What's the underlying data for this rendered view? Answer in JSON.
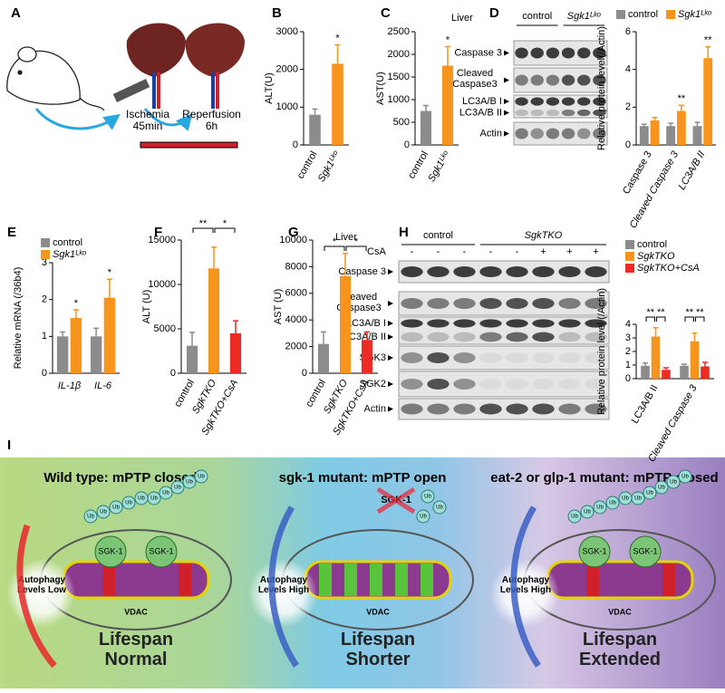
{
  "panels": [
    "A",
    "B",
    "C",
    "D",
    "E",
    "F",
    "G",
    "H",
    "I"
  ],
  "procedure": {
    "steps": [
      "Ischemia 45min",
      "Reperfusion 6h"
    ]
  },
  "blots": [
    {
      "tissue": "Liver",
      "groups": [
        "control",
        "Sgk1ᴸᵏᵒ"
      ],
      "rows": [
        "Caspase 3",
        "Cleaved Caspase3",
        "LC3A/B I",
        "LC3A/B II",
        "Actin"
      ]
    },
    {
      "tissue": "Liver",
      "groups": [
        "control",
        "SgkTKO"
      ],
      "treatment": "CsA",
      "treatment_marks": [
        "-",
        "-",
        "-",
        "-",
        "-",
        "+",
        "+",
        "+"
      ],
      "rows": [
        "Caspase 3",
        "Cleaved Caspase3",
        "LC3A/B I",
        "LC3A/B II",
        "SGK3",
        "SGK2",
        "Actin"
      ]
    }
  ],
  "chart_data": [
    {
      "type": "bar",
      "ylabel": "ALT(U)",
      "categories": [
        "control",
        "Sgk1ᴸᵏᵒ"
      ],
      "values": [
        800,
        2150
      ],
      "errors": [
        150,
        500
      ],
      "colors": [
        "#8c8c8c",
        "#f7941d"
      ],
      "ylim": [
        0,
        3000
      ],
      "yticks": [
        0,
        1000,
        2000,
        3000
      ],
      "annotations": [
        "*"
      ]
    },
    {
      "type": "bar",
      "ylabel": "AST(U)",
      "categories": [
        "control",
        "Sgk1ᴸᵏᵒ"
      ],
      "values": [
        750,
        1750
      ],
      "errors": [
        120,
        420
      ],
      "colors": [
        "#8c8c8c",
        "#f7941d"
      ],
      "ylim": [
        0,
        2500
      ],
      "yticks": [
        0,
        500,
        1000,
        1500,
        2000,
        2500
      ],
      "annotations": [
        "*"
      ]
    },
    {
      "type": "bar",
      "ylabel": "Relative protein level(/Actin)",
      "categories": [
        "Caspase 3",
        "Cleaved Caspase 3",
        "LC3A/B II"
      ],
      "series": [
        {
          "name": "control",
          "color": "#8c8c8c",
          "values": [
            1,
            1,
            1
          ],
          "errors": [
            0.1,
            0.15,
            0.2
          ]
        },
        {
          "name": "Sgk1ᴸᵏᵒ",
          "color": "#f7941d",
          "values": [
            1.3,
            1.8,
            4.6
          ],
          "errors": [
            0.15,
            0.3,
            0.6
          ]
        }
      ],
      "ylim": [
        0,
        6
      ],
      "yticks": [
        0,
        2,
        4,
        6
      ],
      "annotations": [
        "**",
        "**"
      ]
    },
    {
      "type": "bar",
      "ylabel": "Relative mRNA (/36b4)",
      "categories": [
        "IL-1β",
        "IL-6"
      ],
      "series": [
        {
          "name": "control",
          "color": "#8c8c8c",
          "values": [
            1,
            1
          ],
          "errors": [
            0.12,
            0.22
          ]
        },
        {
          "name": "Sgk1ᴸᵏᵒ",
          "color": "#f7941d",
          "values": [
            1.5,
            2.05
          ],
          "errors": [
            0.22,
            0.5
          ]
        }
      ],
      "ylim": [
        0,
        3
      ],
      "yticks": [
        0,
        1,
        2,
        3
      ],
      "annotations": [
        "*",
        "*"
      ]
    },
    {
      "type": "bar",
      "ylabel": "ALT (U)",
      "categories": [
        "control",
        "SgkTKO",
        "SgkTKO+CsA"
      ],
      "values": [
        3100,
        11800,
        4500
      ],
      "errors": [
        1500,
        2400,
        1400
      ],
      "colors": [
        "#8c8c8c",
        "#f7941d",
        "#ee2a24"
      ],
      "ylim": [
        0,
        15000
      ],
      "yticks": [
        0,
        5000,
        10000,
        15000
      ],
      "annotations": [
        "**",
        "*"
      ]
    },
    {
      "type": "bar",
      "ylabel": "AST (U)",
      "categories": [
        "control",
        "SgkTKO",
        "SgkTKO+CsA"
      ],
      "values": [
        2200,
        7300,
        2500
      ],
      "errors": [
        900,
        1700,
        600
      ],
      "colors": [
        "#8c8c8c",
        "#f7941d",
        "#ee2a24"
      ],
      "ylim": [
        0,
        10000
      ],
      "yticks": [
        0,
        2000,
        4000,
        6000,
        8000,
        10000
      ],
      "annotations": [
        "*",
        "*"
      ]
    },
    {
      "type": "bar",
      "ylabel": "Relative protein level (/Actin)",
      "categories": [
        "LC3A/B II",
        "Cleaved Caspase 3"
      ],
      "series": [
        {
          "name": "control",
          "color": "#8c8c8c",
          "values": [
            0.95,
            0.95
          ],
          "errors": [
            0.2,
            0.12
          ]
        },
        {
          "name": "SgkTKO",
          "color": "#f7941d",
          "values": [
            3.1,
            2.75
          ],
          "errors": [
            0.65,
            0.6
          ]
        },
        {
          "name": "SgkTKO+CsA",
          "color": "#ee2a24",
          "values": [
            0.65,
            0.9
          ],
          "errors": [
            0.15,
            0.3
          ]
        }
      ],
      "ylim": [
        0,
        4
      ],
      "yticks": [
        0,
        1,
        2,
        3,
        4
      ],
      "annotations": [
        "**",
        "**",
        "**",
        "**"
      ]
    }
  ],
  "diagram": {
    "ubiquitin": "Ub",
    "sections": [
      {
        "title": "Wild type: mPTP closed",
        "protein": "SGK-1",
        "autophagy": "Autophagy Levels Low",
        "channel": "VDAC",
        "lifespan": "Lifespan Normal"
      },
      {
        "title": "sgk-1 mutant: mPTP open",
        "protein": "SGK-1",
        "autophagy": "Autophagy Levels High",
        "channel": "VDAC",
        "lifespan": "Lifespan Shorter"
      },
      {
        "title": "eat-2 or glp-1 mutant: mPTP closed",
        "protein": "SGK-1",
        "autophagy": "Autophagy Levels High",
        "channel": "VDAC",
        "lifespan": "Lifespan Extended"
      }
    ]
  }
}
